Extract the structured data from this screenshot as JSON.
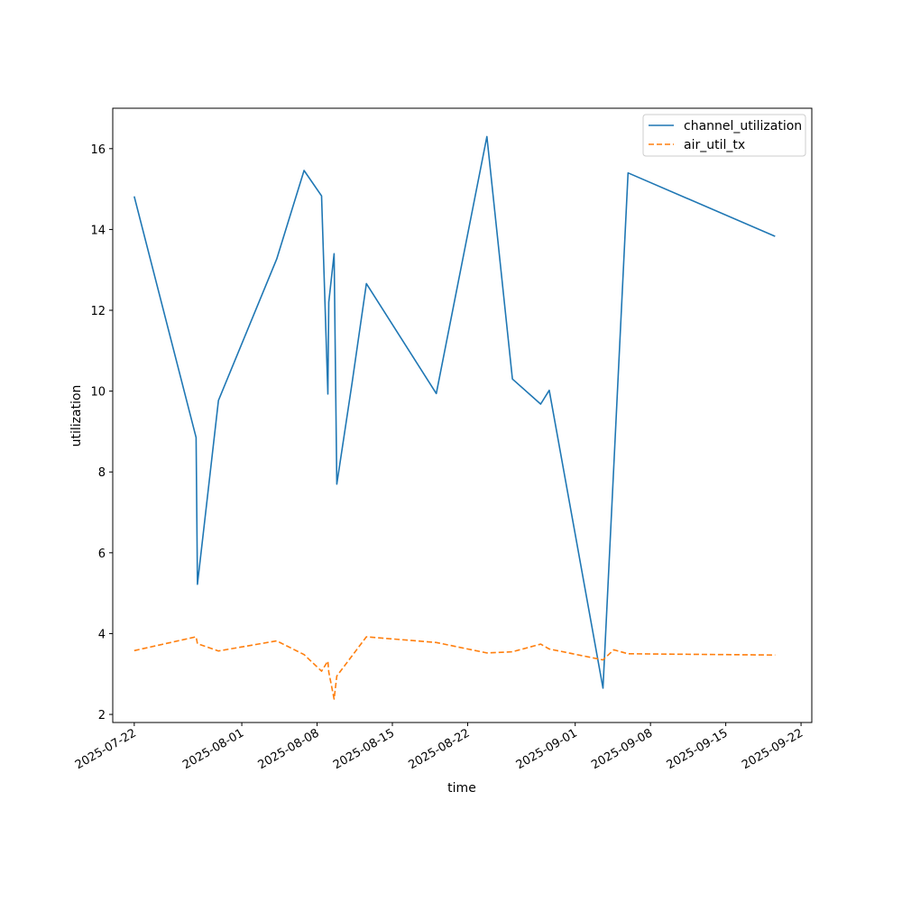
{
  "chart_data": {
    "type": "line",
    "title": "",
    "xlabel": "time",
    "ylabel": "utilization",
    "x_axis_type": "date",
    "xlim": [
      "2025-07-20",
      "2025-09-23"
    ],
    "ylim": [
      1.8,
      17.0
    ],
    "y_ticks": [
      2,
      4,
      6,
      8,
      10,
      12,
      14,
      16
    ],
    "x_ticks": [
      "2025-07-22",
      "2025-08-01",
      "2025-08-08",
      "2025-08-15",
      "2025-08-22",
      "2025-09-01",
      "2025-09-08",
      "2025-09-15",
      "2025-09-22"
    ],
    "grid": false,
    "legend": {
      "position": "top-right"
    },
    "series": [
      {
        "name": "channel_utilization",
        "color": "#1f77b4",
        "style": "solid",
        "points": [
          [
            "2025-07-22 00:00",
            14.82
          ],
          [
            "2025-07-27 18:00",
            8.85
          ],
          [
            "2025-07-27 21:00",
            5.22
          ],
          [
            "2025-07-29 20:00",
            9.77
          ],
          [
            "2025-08-04 06:00",
            13.27
          ],
          [
            "2025-08-06 19:00",
            15.46
          ],
          [
            "2025-08-08 10:00",
            14.83
          ],
          [
            "2025-08-09 00:00",
            9.93
          ],
          [
            "2025-08-09 02:00",
            12.2
          ],
          [
            "2025-08-09 14:00",
            13.4
          ],
          [
            "2025-08-09 20:00",
            7.7
          ],
          [
            "2025-08-11 06:00",
            10.2
          ],
          [
            "2025-08-12 14:00",
            12.66
          ],
          [
            "2025-08-19 02:00",
            9.94
          ],
          [
            "2025-08-23 19:00",
            16.3
          ],
          [
            "2025-08-26 04:00",
            10.3
          ],
          [
            "2025-08-28 19:00",
            9.68
          ],
          [
            "2025-08-29 14:00",
            10.02
          ],
          [
            "2025-09-03 14:00",
            2.65
          ],
          [
            "2025-09-04 14:00",
            8.1
          ],
          [
            "2025-09-05 22:00",
            15.4
          ],
          [
            "2025-09-19 14:00",
            13.83
          ]
        ]
      },
      {
        "name": "air_util_tx",
        "color": "#ff7f0e",
        "style": "dashed",
        "points": [
          [
            "2025-07-22 00:00",
            3.58
          ],
          [
            "2025-07-27 18:00",
            3.92
          ],
          [
            "2025-07-27 21:00",
            3.75
          ],
          [
            "2025-07-29 20:00",
            3.57
          ],
          [
            "2025-08-04 06:00",
            3.82
          ],
          [
            "2025-08-06 19:00",
            3.48
          ],
          [
            "2025-08-08 10:00",
            3.07
          ],
          [
            "2025-08-09 00:00",
            3.32
          ],
          [
            "2025-08-09 02:00",
            3.05
          ],
          [
            "2025-08-09 14:00",
            2.38
          ],
          [
            "2025-08-09 20:00",
            2.95
          ],
          [
            "2025-08-11 06:00",
            3.45
          ],
          [
            "2025-08-12 14:00",
            3.92
          ],
          [
            "2025-08-19 02:00",
            3.78
          ],
          [
            "2025-08-23 19:00",
            3.52
          ],
          [
            "2025-08-26 04:00",
            3.55
          ],
          [
            "2025-08-28 19:00",
            3.74
          ],
          [
            "2025-08-29 14:00",
            3.62
          ],
          [
            "2025-09-03 14:00",
            3.35
          ],
          [
            "2025-09-04 14:00",
            3.6
          ],
          [
            "2025-09-05 22:00",
            3.5
          ],
          [
            "2025-09-19 14:00",
            3.47
          ]
        ]
      }
    ]
  }
}
